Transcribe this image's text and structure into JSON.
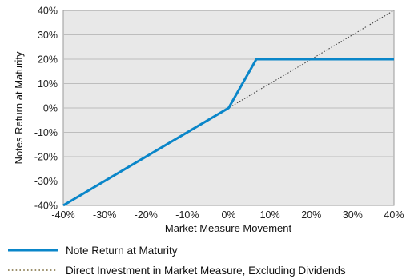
{
  "chart_data": {
    "type": "line",
    "xlabel": "Market Measure Movement",
    "ylabel": "Notes Return at Maturity",
    "xlim": [
      -40,
      40
    ],
    "ylim": [
      -40,
      40
    ],
    "x_ticks": [
      -40,
      -30,
      -20,
      -10,
      0,
      10,
      20,
      30,
      40
    ],
    "y_ticks": [
      -40,
      -30,
      -20,
      -10,
      0,
      10,
      20,
      30,
      40
    ],
    "x_tick_labels": [
      "-40%",
      "-30%",
      "-20%",
      "-10%",
      "0%",
      "10%",
      "20%",
      "30%",
      "40%"
    ],
    "y_tick_labels": [
      "-40%",
      "-30%",
      "-20%",
      "-10%",
      "0%",
      "10%",
      "20%",
      "30%",
      "40%"
    ],
    "grid": true,
    "legend_placement": "bottom",
    "plot_background": "#e8e8e8",
    "series": [
      {
        "name": "Note Return at Maturity",
        "color": "#0a86c9",
        "style": "solid",
        "x": [
          -40,
          0,
          6.7,
          40
        ],
        "y": [
          -40,
          0,
          20,
          20
        ]
      },
      {
        "name": "Direct Investment in Market Measure, Excluding Dividends",
        "color": "#444444",
        "style": "dotted",
        "x": [
          -40,
          40
        ],
        "y": [
          -40,
          40
        ]
      }
    ]
  }
}
